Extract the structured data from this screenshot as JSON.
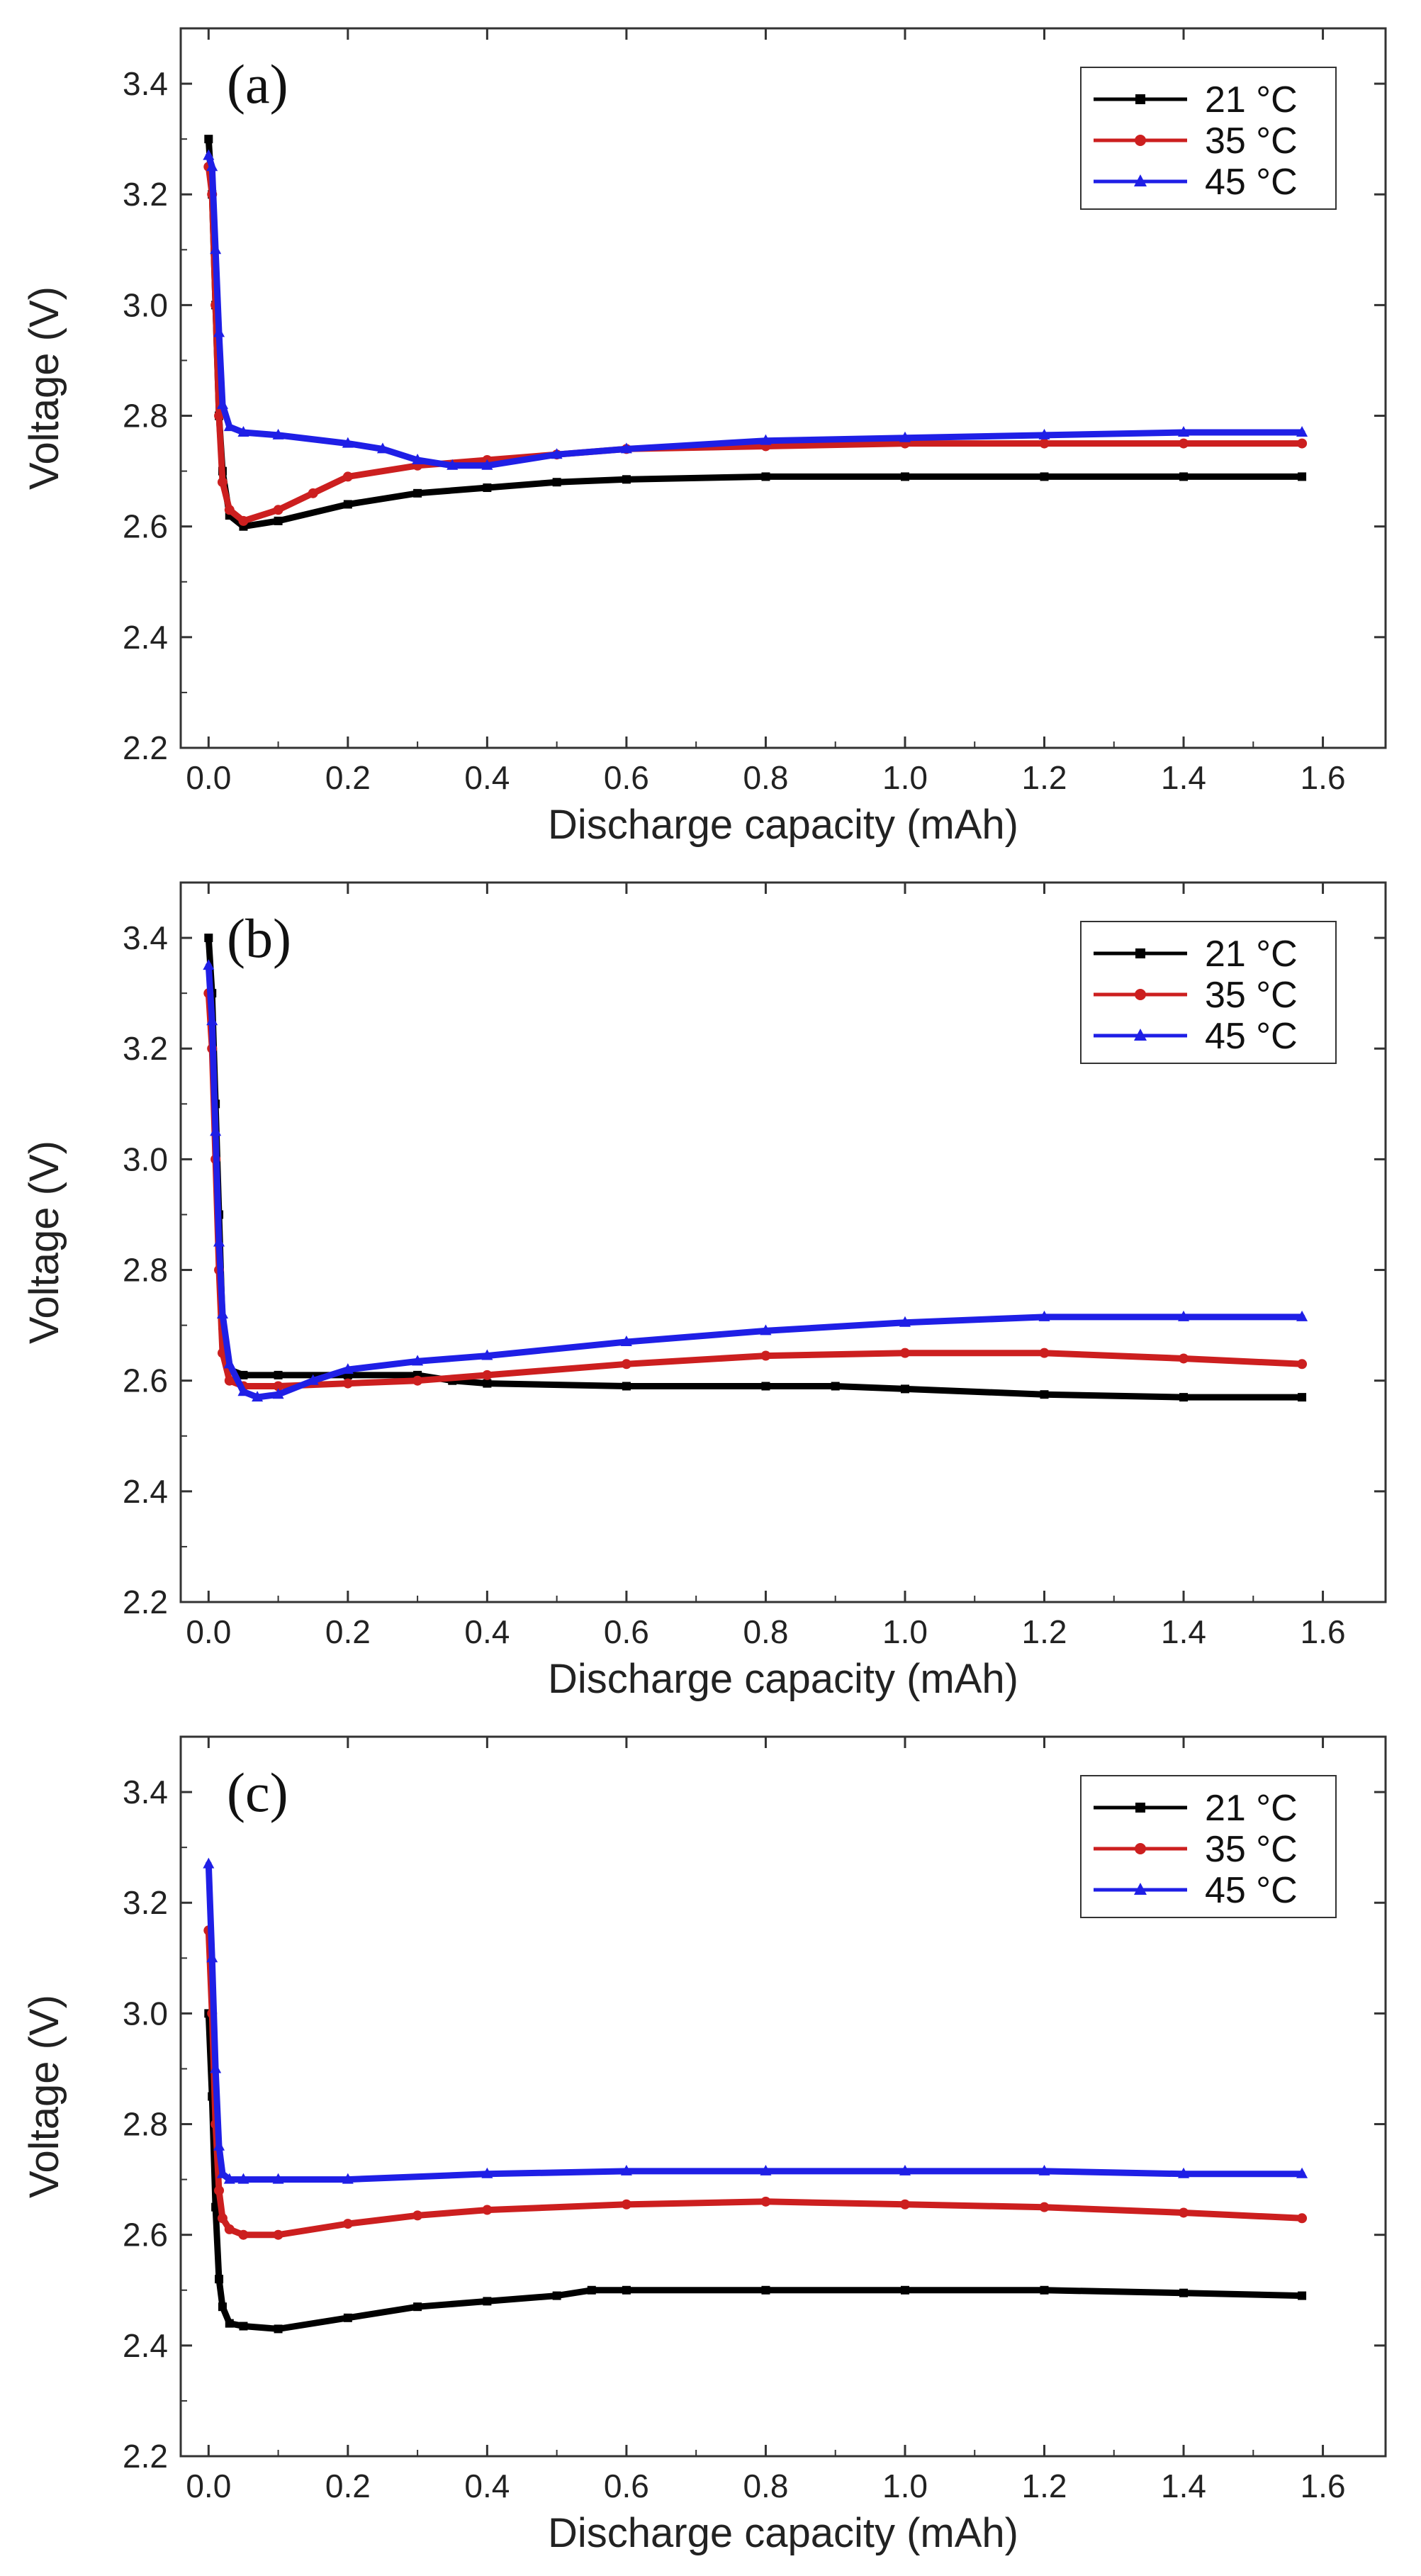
{
  "colors": {
    "s21": "#000000",
    "s35": "#cc1f1f",
    "s45": "#1f1fe6"
  },
  "chart_data": [
    {
      "type": "line",
      "panel_label": "(a)",
      "xlabel": "Discharge capacity (mAh)",
      "ylabel": "Voltage (V)",
      "xlim": [
        -0.04,
        1.69
      ],
      "ylim": [
        2.2,
        3.5
      ],
      "xticks": [
        "0.0",
        "0.2",
        "0.4",
        "0.6",
        "0.8",
        "1.0",
        "1.2",
        "1.4",
        "1.6"
      ],
      "yticks": [
        "2.2",
        "2.4",
        "2.6",
        "2.8",
        "3.0",
        "3.2",
        "3.4"
      ],
      "legend": [
        "21 °C",
        "35 °C",
        "45 °C"
      ],
      "series": [
        {
          "name": "21 °C",
          "x": [
            0,
            0.005,
            0.01,
            0.015,
            0.02,
            0.03,
            0.05,
            0.1,
            0.2,
            0.3,
            0.4,
            0.5,
            0.6,
            0.8,
            1.0,
            1.2,
            1.4,
            1.57
          ],
          "y": [
            3.3,
            3.2,
            3.0,
            2.8,
            2.7,
            2.62,
            2.6,
            2.61,
            2.64,
            2.66,
            2.67,
            2.68,
            2.685,
            2.69,
            2.69,
            2.69,
            2.69,
            2.69
          ]
        },
        {
          "name": "35 °C",
          "x": [
            0,
            0.005,
            0.01,
            0.015,
            0.02,
            0.03,
            0.05,
            0.1,
            0.15,
            0.2,
            0.3,
            0.4,
            0.5,
            0.6,
            0.8,
            1.0,
            1.2,
            1.4,
            1.57
          ],
          "y": [
            3.25,
            3.2,
            3.0,
            2.8,
            2.68,
            2.63,
            2.61,
            2.63,
            2.66,
            2.69,
            2.71,
            2.72,
            2.73,
            2.74,
            2.745,
            2.75,
            2.75,
            2.75,
            2.75
          ]
        },
        {
          "name": "45 °C",
          "x": [
            0,
            0.005,
            0.01,
            0.015,
            0.02,
            0.03,
            0.05,
            0.1,
            0.2,
            0.25,
            0.3,
            0.35,
            0.4,
            0.5,
            0.6,
            0.8,
            1.0,
            1.2,
            1.4,
            1.57
          ],
          "y": [
            3.27,
            3.25,
            3.1,
            2.95,
            2.82,
            2.78,
            2.77,
            2.765,
            2.75,
            2.74,
            2.72,
            2.71,
            2.71,
            2.73,
            2.74,
            2.755,
            2.76,
            2.765,
            2.77,
            2.77
          ]
        }
      ]
    },
    {
      "type": "line",
      "panel_label": "(b)",
      "xlabel": "Discharge capacity (mAh)",
      "ylabel": "Voltage (V)",
      "xlim": [
        -0.04,
        1.69
      ],
      "ylim": [
        2.2,
        3.5
      ],
      "xticks": [
        "0.0",
        "0.2",
        "0.4",
        "0.6",
        "0.8",
        "1.0",
        "1.2",
        "1.4",
        "1.6"
      ],
      "yticks": [
        "2.2",
        "2.4",
        "2.6",
        "2.8",
        "3.0",
        "3.2",
        "3.4"
      ],
      "legend": [
        "21 °C",
        "35 °C",
        "45 °C"
      ],
      "series": [
        {
          "name": "21 °C",
          "x": [
            0,
            0.005,
            0.01,
            0.015,
            0.02,
            0.03,
            0.05,
            0.1,
            0.2,
            0.3,
            0.35,
            0.4,
            0.6,
            0.8,
            0.9,
            1.0,
            1.2,
            1.4,
            1.57
          ],
          "y": [
            3.4,
            3.3,
            3.1,
            2.9,
            2.7,
            2.62,
            2.61,
            2.61,
            2.61,
            2.61,
            2.6,
            2.595,
            2.59,
            2.59,
            2.59,
            2.585,
            2.575,
            2.57,
            2.57
          ]
        },
        {
          "name": "35 °C",
          "x": [
            0,
            0.005,
            0.01,
            0.015,
            0.02,
            0.03,
            0.05,
            0.1,
            0.2,
            0.3,
            0.4,
            0.6,
            0.8,
            1.0,
            1.2,
            1.4,
            1.57
          ],
          "y": [
            3.3,
            3.2,
            3.0,
            2.8,
            2.65,
            2.6,
            2.59,
            2.59,
            2.595,
            2.6,
            2.61,
            2.63,
            2.645,
            2.65,
            2.65,
            2.64,
            2.63
          ]
        },
        {
          "name": "45 °C",
          "x": [
            0,
            0.005,
            0.01,
            0.015,
            0.02,
            0.03,
            0.05,
            0.07,
            0.1,
            0.15,
            0.2,
            0.3,
            0.4,
            0.6,
            0.8,
            1.0,
            1.2,
            1.4,
            1.57
          ],
          "y": [
            3.35,
            3.25,
            3.05,
            2.85,
            2.72,
            2.63,
            2.58,
            2.57,
            2.575,
            2.6,
            2.62,
            2.635,
            2.645,
            2.67,
            2.69,
            2.705,
            2.715,
            2.715,
            2.715
          ]
        }
      ]
    },
    {
      "type": "line",
      "panel_label": "(c)",
      "xlabel": "Discharge capacity (mAh)",
      "ylabel": "Voltage (V)",
      "xlim": [
        -0.04,
        1.69
      ],
      "ylim": [
        2.2,
        3.5
      ],
      "xticks": [
        "0.0",
        "0.2",
        "0.4",
        "0.6",
        "0.8",
        "1.0",
        "1.2",
        "1.4",
        "1.6"
      ],
      "yticks": [
        "2.2",
        "2.4",
        "2.6",
        "2.8",
        "3.0",
        "3.2",
        "3.4"
      ],
      "legend": [
        "21 °C",
        "35 °C",
        "45 °C"
      ],
      "series": [
        {
          "name": "21 °C",
          "x": [
            0,
            0.005,
            0.01,
            0.015,
            0.02,
            0.03,
            0.05,
            0.1,
            0.2,
            0.3,
            0.4,
            0.5,
            0.55,
            0.6,
            0.8,
            1.0,
            1.2,
            1.4,
            1.57
          ],
          "y": [
            3.0,
            2.85,
            2.65,
            2.52,
            2.47,
            2.44,
            2.435,
            2.43,
            2.45,
            2.47,
            2.48,
            2.49,
            2.5,
            2.5,
            2.5,
            2.5,
            2.5,
            2.495,
            2.49
          ]
        },
        {
          "name": "35 °C",
          "x": [
            0,
            0.005,
            0.01,
            0.015,
            0.02,
            0.03,
            0.05,
            0.1,
            0.2,
            0.3,
            0.4,
            0.6,
            0.8,
            1.0,
            1.2,
            1.4,
            1.57
          ],
          "y": [
            3.15,
            3.0,
            2.8,
            2.68,
            2.63,
            2.61,
            2.6,
            2.6,
            2.62,
            2.635,
            2.645,
            2.655,
            2.66,
            2.655,
            2.65,
            2.64,
            2.63
          ]
        },
        {
          "name": "45 °C",
          "x": [
            0,
            0.005,
            0.01,
            0.015,
            0.02,
            0.03,
            0.05,
            0.1,
            0.2,
            0.4,
            0.6,
            0.8,
            1.0,
            1.2,
            1.4,
            1.57
          ],
          "y": [
            3.27,
            3.1,
            2.9,
            2.76,
            2.71,
            2.7,
            2.7,
            2.7,
            2.7,
            2.71,
            2.715,
            2.715,
            2.715,
            2.715,
            2.71,
            2.71
          ]
        }
      ]
    }
  ]
}
